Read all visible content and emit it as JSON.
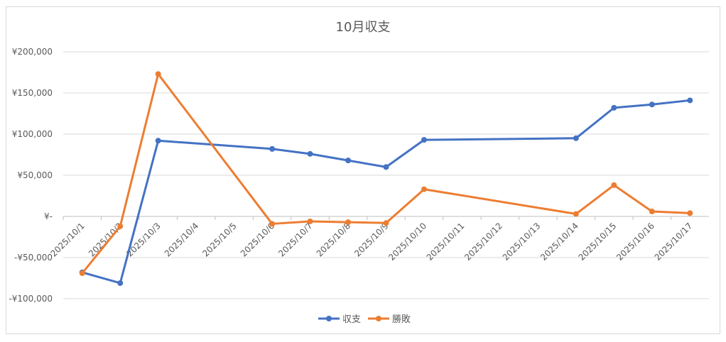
{
  "chart_data": {
    "type": "line",
    "title": "10月収支",
    "categories": [
      "2025/10/1",
      "2025/10/2",
      "2025/10/3",
      "2025/10/4",
      "2025/10/5",
      "2025/10/6",
      "2025/10/7",
      "2025/10/8",
      "2025/10/9",
      "2025/10/10",
      "2025/10/11",
      "2025/10/12",
      "2025/10/13",
      "2025/10/14",
      "2025/10/15",
      "2025/10/16",
      "2025/10/17"
    ],
    "ylim": [
      -100000,
      200000
    ],
    "yticks": [
      {
        "value": 200000,
        "label": "¥200,000"
      },
      {
        "value": 150000,
        "label": "¥150,000"
      },
      {
        "value": 100000,
        "label": "¥100,000"
      },
      {
        "value": 50000,
        "label": "¥50,000"
      },
      {
        "value": 0,
        "label": "¥-"
      },
      {
        "value": -50000,
        "label": "-¥50,000"
      },
      {
        "value": -100000,
        "label": "-¥100,000"
      }
    ],
    "grid": true,
    "legend_position": "bottom",
    "series": [
      {
        "name": "収支",
        "color": "#4472c4",
        "points": [
          {
            "x": "2025/10/1",
            "y": -68000
          },
          {
            "x": "2025/10/2",
            "y": -81000
          },
          {
            "x": "2025/10/3",
            "y": 92000
          },
          {
            "x": "2025/10/6",
            "y": 82000
          },
          {
            "x": "2025/10/7",
            "y": 76000
          },
          {
            "x": "2025/10/8",
            "y": 68000
          },
          {
            "x": "2025/10/9",
            "y": 60000
          },
          {
            "x": "2025/10/10",
            "y": 93000
          },
          {
            "x": "2025/10/14",
            "y": 95000
          },
          {
            "x": "2025/10/15",
            "y": 132000
          },
          {
            "x": "2025/10/16",
            "y": 136000
          },
          {
            "x": "2025/10/17",
            "y": 141000
          }
        ]
      },
      {
        "name": "勝敗",
        "color": "#ed7d31",
        "points": [
          {
            "x": "2025/10/1",
            "y": -69000
          },
          {
            "x": "2025/10/2",
            "y": -12000
          },
          {
            "x": "2025/10/3",
            "y": 173000
          },
          {
            "x": "2025/10/6",
            "y": -9000
          },
          {
            "x": "2025/10/7",
            "y": -6000
          },
          {
            "x": "2025/10/8",
            "y": -7000
          },
          {
            "x": "2025/10/9",
            "y": -8000
          },
          {
            "x": "2025/10/10",
            "y": 33000
          },
          {
            "x": "2025/10/14",
            "y": 3000
          },
          {
            "x": "2025/10/15",
            "y": 38000
          },
          {
            "x": "2025/10/16",
            "y": 6000
          },
          {
            "x": "2025/10/17",
            "y": 4000
          }
        ]
      }
    ]
  }
}
